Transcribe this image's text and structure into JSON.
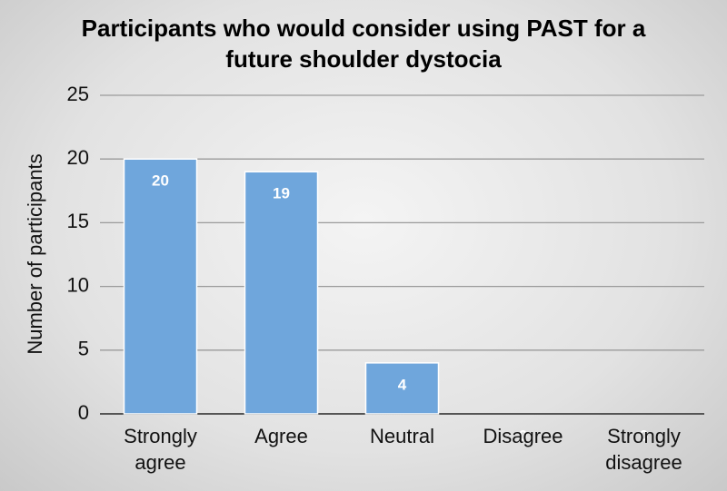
{
  "chart_data": {
    "type": "bar",
    "title": "Participants who would consider using PAST for a future shoulder dystocia",
    "y_label": "Number of participants",
    "categories": [
      "Strongly agree",
      "Agree",
      "Neutral",
      "Disagree",
      "Strongly disagree"
    ],
    "values": [
      20,
      19,
      4,
      0,
      0
    ],
    "color": "#6fa6dc",
    "ylim": [
      0,
      25
    ],
    "yticks": [
      0,
      5,
      10,
      15,
      20,
      25
    ],
    "grid": true
  }
}
